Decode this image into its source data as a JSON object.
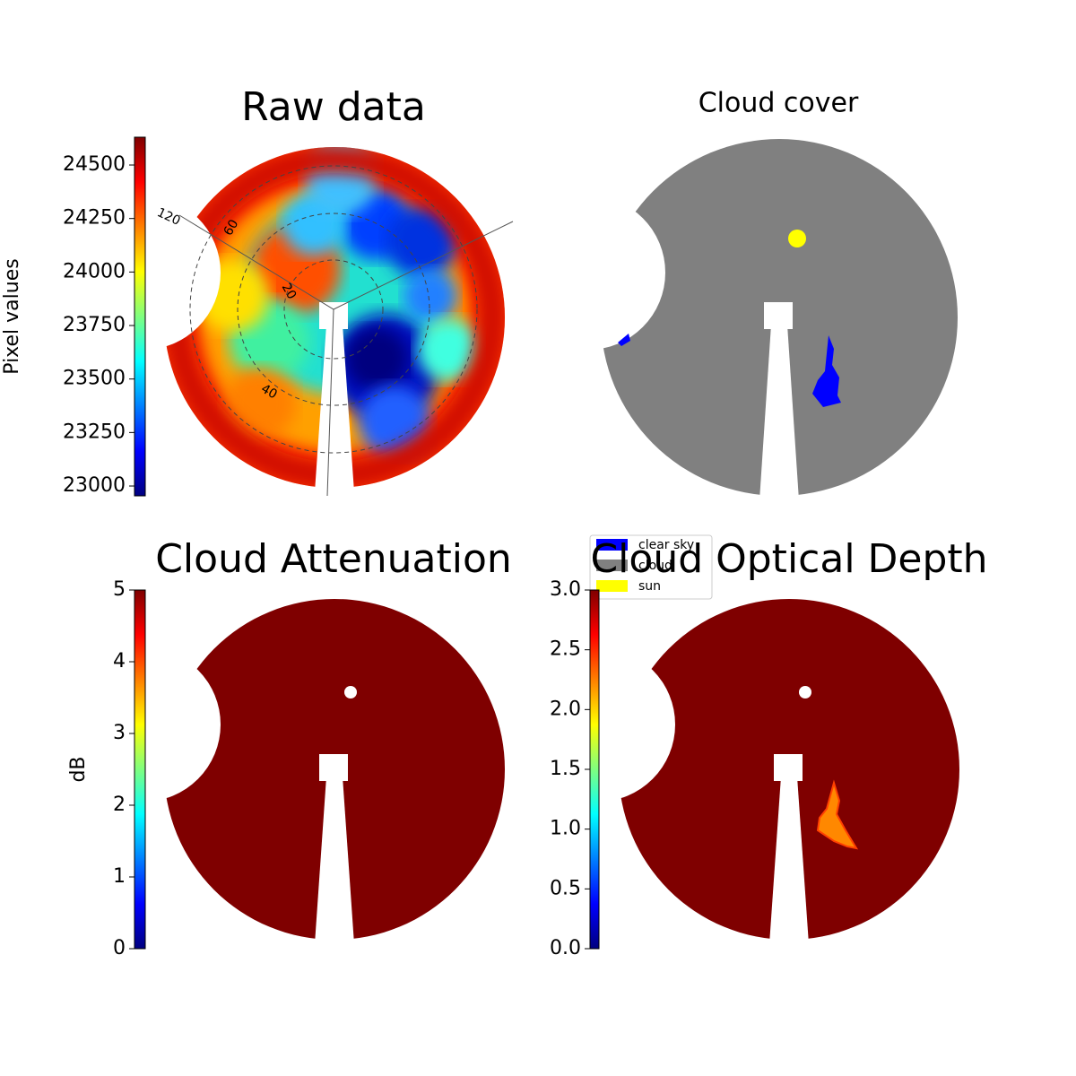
{
  "chart_data": [
    {
      "type": "image",
      "title": "Raw data",
      "colorbar": {
        "label": "Pixel values",
        "lim": [
          22954,
          24630
        ],
        "ticks": [
          23000,
          23250,
          23500,
          23750,
          24000,
          24250,
          24500
        ]
      },
      "polar_labels": [
        "120",
        "60",
        "20",
        "40"
      ]
    },
    {
      "type": "image",
      "title": "Cloud cover",
      "legend": [
        {
          "name": "clear sky",
          "color": "#0000ff"
        },
        {
          "name": "cloud",
          "color": "#808080"
        },
        {
          "name": "sun",
          "color": "#ffff00"
        }
      ]
    },
    {
      "type": "image",
      "title": "Cloud Attenuation",
      "colorbar": {
        "label": "dB",
        "lim": [
          0,
          5
        ],
        "ticks": [
          0,
          1,
          2,
          3,
          4,
          5
        ]
      }
    },
    {
      "type": "image",
      "title": "Cloud Optical Depth",
      "colorbar": {
        "lim": [
          0,
          3
        ],
        "ticks": [
          {
            "value": 0,
            "label": "0.0"
          },
          {
            "value": 0.5,
            "label": "0.5"
          },
          {
            "value": 1,
            "label": "1.0"
          },
          {
            "value": 1.5,
            "label": "1.5"
          },
          {
            "value": 2,
            "label": "2.0"
          },
          {
            "value": 2.5,
            "label": "2.5"
          },
          {
            "value": 3,
            "label": "3.0"
          }
        ]
      }
    }
  ]
}
